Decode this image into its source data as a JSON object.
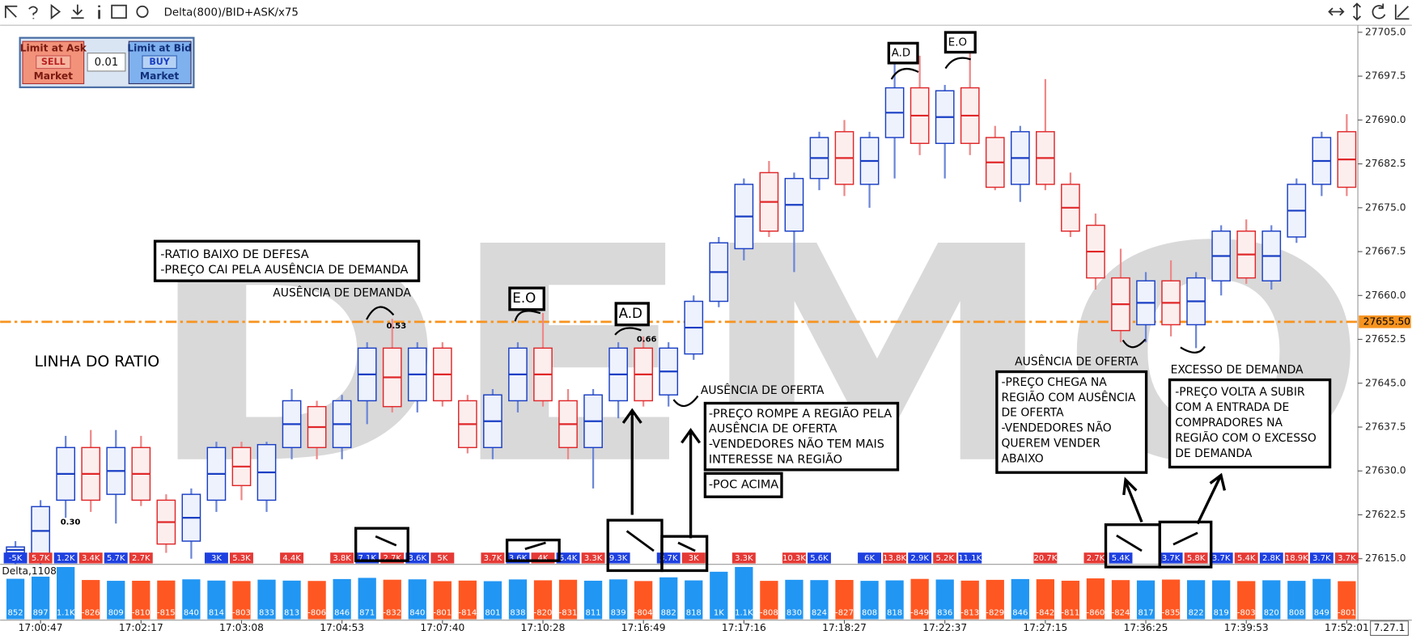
{
  "toolbar": {
    "title": "Delta(800)/BID+ASK/x75"
  },
  "order_panel": {
    "sell_label": "Limit at Ask",
    "sell_button": "SELL",
    "sell_market": "Market",
    "quantity": "0.01",
    "buy_label": "Limit at Bid",
    "buy_button": "BUY",
    "buy_market": "Market"
  },
  "watermark": "DEMO",
  "version": "7.27.1",
  "chart_data": {
    "type": "candlestick",
    "categories": [
      null,
      "17:00:47",
      null,
      null,
      null,
      "17:02:17",
      null,
      null,
      null,
      "17:03:08",
      null,
      null,
      null,
      "17:04:53",
      null,
      null,
      null,
      "17:07:40",
      null,
      null,
      null,
      "17:10:28",
      null,
      null,
      null,
      "17:16:49",
      null,
      null,
      null,
      "17:17:16",
      null,
      null,
      null,
      "17:18:27",
      null,
      null,
      null,
      "17:22:37",
      null,
      null,
      null,
      "17:27:15",
      null,
      null,
      null,
      "17:36:25",
      null,
      null,
      null,
      "17:39:53",
      null,
      null,
      null,
      "17:52:01"
    ],
    "open": [
      27616,
      27615.6,
      27625,
      27634,
      27626,
      27634,
      27625,
      27618,
      27625,
      27634,
      27625,
      27634,
      27641,
      27634,
      27642,
      27651,
      27642,
      27651,
      27642,
      27634,
      27642,
      27651,
      27642,
      27634,
      27642,
      27651,
      27643,
      27650,
      27659,
      27668,
      27681,
      27671,
      27680,
      27688,
      27679,
      27687,
      27695.5,
      27686,
      27695.5,
      27687,
      27679,
      27688,
      27679,
      27672,
      27663,
      27655,
      27662.5,
      27655,
      27662.5,
      27671,
      27662.5,
      27670,
      27679,
      27688
    ],
    "high": [
      27618,
      27625,
      27636,
      27637,
      27637,
      27636,
      27626,
      27627,
      27635,
      27635,
      27635,
      27644,
      27642,
      27643,
      27652,
      27656,
      27652,
      27652,
      27643,
      27644,
      27652,
      27657,
      27644,
      27644,
      27652,
      27653,
      27652,
      27660,
      27670,
      27680,
      27683,
      27681,
      27688,
      27690,
      27688,
      27700,
      27701,
      27696,
      27704,
      27689,
      27689,
      27697,
      27681,
      27674,
      27668,
      27664,
      27666,
      27664,
      27672,
      27673,
      27672,
      27680,
      27688,
      27691
    ],
    "low": [
      27614,
      27614,
      27622,
      27623,
      27621,
      27624,
      27616,
      27615,
      27623,
      27625,
      27623,
      27632,
      27632,
      27632,
      27638,
      27640,
      27640,
      27641,
      27633,
      27632,
      27640,
      27641,
      27632,
      27627,
      27639,
      27641,
      27641,
      27649,
      27658,
      27666,
      27670,
      27664,
      27678,
      27677,
      27675,
      27680,
      27684,
      27680,
      27684,
      27678,
      27676,
      27678,
      27670,
      27661,
      27652,
      27652,
      27653,
      27651,
      27660,
      27662,
      27661,
      27669,
      27677,
      27677
    ],
    "close": [
      27617,
      27623.9,
      27634,
      27625,
      27634,
      27625,
      27617.5,
      27626,
      27634,
      27627.5,
      27634.5,
      27642,
      27634,
      27642,
      27651,
      27641,
      27651,
      27642,
      27634,
      27643,
      27651,
      27642,
      27634,
      27643,
      27651,
      27642,
      27651,
      27659,
      27669,
      27679,
      27671,
      27680,
      27687,
      27679,
      27687,
      27695.5,
      27686,
      27695,
      27686,
      27678.5,
      27688,
      27679,
      27671,
      27663,
      27654,
      27662.5,
      27655,
      27663,
      27671,
      27663,
      27671,
      27679,
      27687,
      27678.5
    ],
    "up_color": "#1a3fc4",
    "down_color": "#e0282a",
    "ylim": [
      27614.5,
      27705.9
    ],
    "yticks": [
      {
        "value": 27705,
        "label": "27705.0"
      },
      {
        "value": 27697.5,
        "label": "27697.5"
      },
      {
        "value": 27690,
        "label": "27690.0"
      },
      {
        "value": 27682.5,
        "label": "27682.5"
      },
      {
        "value": 27675,
        "label": "27675.0"
      },
      {
        "value": 27667.5,
        "label": "27667.5"
      },
      {
        "value": 27660,
        "label": "27660.0"
      },
      {
        "value": 27652.5,
        "label": "27652.5"
      },
      {
        "value": 27645,
        "label": "27645.0"
      },
      {
        "value": 27637.5,
        "label": "27637.5"
      },
      {
        "value": 27630,
        "label": "27630.0"
      },
      {
        "value": 27622.5,
        "label": "27622.5"
      },
      {
        "value": 27615,
        "label": "27615.0"
      }
    ],
    "price_line": {
      "value": 27655.5,
      "label": "27655.50",
      "color": "#f7931e"
    },
    "volume_labels": [
      "-5K",
      "5.7K",
      "1.2K",
      "3.4K",
      "5.7K",
      "2.7K",
      null,
      null,
      "3K",
      "5.3K",
      null,
      "4.4K",
      null,
      "3.8K",
      "7.1K",
      "2.7K",
      "3.6K",
      "5K",
      null,
      "3.7K",
      "3.6K",
      "4K",
      "6.4K",
      "3.3K",
      "9.3K",
      null,
      "3.7K",
      "3K",
      null,
      "3.3K",
      null,
      "10.3K",
      "5.6K",
      null,
      "6K",
      "13.8K",
      "2.9K",
      "5.2K",
      "11.1K",
      null,
      null,
      "20.7K",
      null,
      "2.7K",
      "5.4K",
      null,
      "3.7K",
      "5.8K",
      "3.7K",
      "5.4K",
      "2.8K",
      "18.9K",
      "3.7K",
      "3.7K"
    ],
    "delta": {
      "title": "Delta,1108",
      "positive_color": "#2196f3",
      "negative_color": "#ff5722",
      "values": [
        852,
        897,
        1100,
        -826,
        809,
        -810,
        -815,
        840,
        814,
        -803,
        833,
        813,
        -806,
        846,
        871,
        -832,
        840,
        -801,
        -814,
        801,
        838,
        -820,
        -831,
        811,
        839,
        -804,
        882,
        818,
        1000,
        1100,
        -808,
        830,
        824,
        -827,
        808,
        818,
        -849,
        836,
        -813,
        -829,
        846,
        -842,
        -811,
        -860,
        -824,
        817,
        -835,
        822,
        819,
        -803,
        820,
        808,
        849,
        -801
      ],
      "value_labels": [
        "852",
        "897",
        "1.1K",
        "-826",
        "809",
        "-810",
        "-815",
        "840",
        "814",
        "-803",
        "833",
        "813",
        "-806",
        "846",
        "871",
        "-832",
        "840",
        "-801",
        "-814",
        "801",
        "838",
        "-820",
        "-831",
        "811",
        "839",
        "-804",
        "882",
        "818",
        "1K",
        "1.1K",
        "-808",
        "830",
        "824",
        "-827",
        "808",
        "818",
        "-849",
        "836",
        "-813",
        "-829",
        "846",
        "-842",
        "-811",
        "-860",
        "-824",
        "817",
        "-835",
        "822",
        "819",
        "-803",
        "820",
        "808",
        "849",
        "-801"
      ]
    }
  },
  "annotations": [
    {
      "lines": [
        "-RATIO BAIXO DE DEFESA",
        "-PREÇO CAI PELA AUSÊNCIA DE DEMANDA"
      ]
    },
    {
      "lines": [
        "AUSÊNCIA DE DEMANDA"
      ]
    },
    {
      "lines": [
        "LINHA DO RATIO"
      ]
    },
    {
      "lines": [
        "E.O"
      ]
    },
    {
      "lines": [
        "A.D"
      ]
    },
    {
      "lines": [
        "A.D"
      ]
    },
    {
      "lines": [
        "E.O"
      ]
    },
    {
      "lines": [
        "AUSÊNCIA DE OFERTA"
      ]
    },
    {
      "lines": [
        "-PREÇO ROMPE A REGIÃO PELA",
        "AUSÊNCIA DE OFERTA",
        "-VENDEDORES NÃO TEM MAIS",
        "INTERESSE NA REGIÃO"
      ]
    },
    {
      "lines": [
        "-POC ACIMA"
      ]
    },
    {
      "lines": [
        "AUSÊNCIA DE OFERTA"
      ]
    },
    {
      "lines": [
        "-PREÇO CHEGA NA",
        "REGIÃO COM AUSÊNCIA",
        "DE OFERTA",
        "-VENDEDORES NÃO",
        "QUEREM VENDER",
        "ABAIXO"
      ]
    },
    {
      "lines": [
        "EXCESSO DE DEMANDA"
      ]
    },
    {
      "lines": [
        "-PREÇO VOLTA A SUBIR",
        "COM A ENTRADA DE",
        "COMPRADORES NA",
        "REGIÃO COM O EXCESSO",
        "DE DEMANDA"
      ]
    },
    {
      "lines": [
        "0.53"
      ]
    },
    {
      "lines": [
        "0.30"
      ]
    },
    {
      "lines": [
        "0.66"
      ]
    }
  ]
}
